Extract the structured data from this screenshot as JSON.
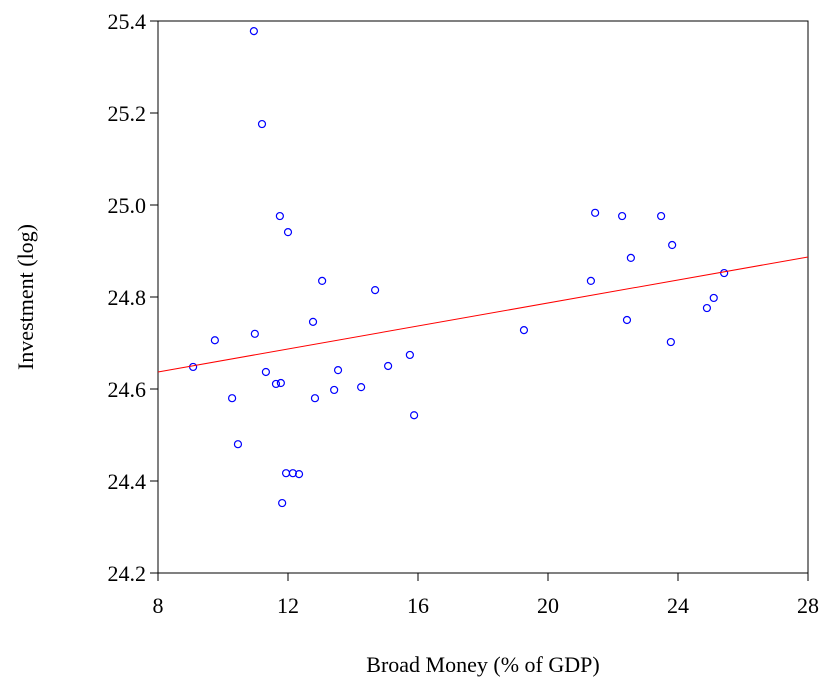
{
  "chart_data": {
    "type": "scatter",
    "x_label": "Broad Money (% of GDP)",
    "y_label": "Investment (log)",
    "xlim": [
      8,
      28
    ],
    "ylim": [
      24.2,
      25.4
    ],
    "xticks": [
      8,
      12,
      16,
      20,
      24,
      28
    ],
    "yticks": [
      24.2,
      24.4,
      24.6,
      24.8,
      {
        "value": 25,
        "label": "25.0"
      },
      25.2,
      25.4
    ],
    "series": [
      {
        "color": "#0000ff",
        "x": [
          10.95,
          11.2,
          11.75,
          12.0,
          10.98,
          13.05,
          12.77,
          14.68,
          9.75,
          9.08,
          10.28,
          10.46,
          11.32,
          11.63,
          11.78,
          11.94,
          12.15,
          12.34,
          11.82,
          12.83,
          13.54,
          13.42,
          14.25,
          15.08,
          15.75,
          15.88,
          19.26,
          21.45,
          22.28,
          23.48,
          21.32,
          22.55,
          22.43,
          23.82,
          25.42,
          25.1,
          24.89,
          23.78
        ],
        "values": [
          25.378,
          25.176,
          24.976,
          24.941,
          24.72,
          24.835,
          24.746,
          24.815,
          24.706,
          24.648,
          24.58,
          24.48,
          24.637,
          24.611,
          24.613,
          24.417,
          24.417,
          24.415,
          24.352,
          24.58,
          24.641,
          24.598,
          24.604,
          24.65,
          24.674,
          24.543,
          24.728,
          24.983,
          24.976,
          24.976,
          24.835,
          24.885,
          24.75,
          24.913,
          24.852,
          24.798,
          24.776,
          24.702
        ]
      }
    ],
    "fit": {
      "color": "#ff0000",
      "x": [
        8,
        28
      ],
      "values": [
        24.637,
        24.887
      ]
    }
  }
}
